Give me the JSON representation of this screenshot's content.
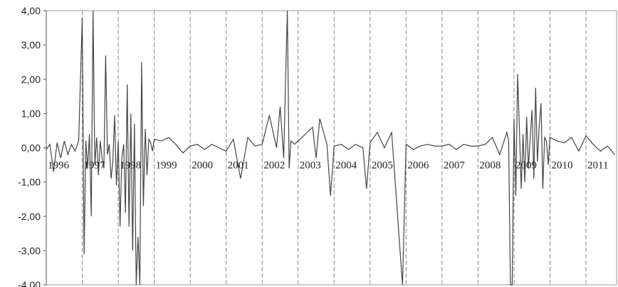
{
  "chart_data": {
    "type": "line",
    "title": "",
    "xlabel": "",
    "ylabel": "",
    "ylim": [
      -4,
      4
    ],
    "xlim": [
      1996,
      2011.85
    ],
    "y_ticks": [
      {
        "value": 4,
        "label": "4,00"
      },
      {
        "value": 3,
        "label": "3,00"
      },
      {
        "value": 2,
        "label": "2,00"
      },
      {
        "value": 1,
        "label": "1,00"
      },
      {
        "value": 0,
        "label": "0,00"
      },
      {
        "value": -1,
        "label": "-1,00"
      },
      {
        "value": -2,
        "label": "-2,00"
      },
      {
        "value": -3,
        "label": "-3,00"
      },
      {
        "value": -4,
        "label": "-4,00"
      }
    ],
    "year_labels": [
      "1996",
      "1997",
      "1998",
      "1999",
      "2000",
      "2001",
      "2002",
      "2003",
      "2004",
      "2005",
      "2006",
      "2007",
      "2008",
      "2009",
      "2010",
      "2011"
    ],
    "grid": {
      "vertical_dashed_year_lines": true,
      "horizontal": false
    },
    "legend": "none",
    "line_color": "#444444",
    "series": [
      {
        "x": [
          1996.0,
          1996.1,
          1996.2,
          1996.3,
          1996.4,
          1996.5,
          1996.6,
          1996.7,
          1996.8,
          1996.9,
          1997.0,
          1997.05,
          1997.1,
          1997.15,
          1997.2,
          1997.25,
          1997.3,
          1997.35,
          1997.4,
          1997.45,
          1997.5,
          1997.55,
          1997.6,
          1997.65,
          1997.7,
          1997.75,
          1997.8,
          1997.85,
          1997.9,
          1997.95,
          1998.0,
          1998.05,
          1998.1,
          1998.15,
          1998.2,
          1998.25,
          1998.3,
          1998.35,
          1998.4,
          1998.45,
          1998.5,
          1998.55,
          1998.6,
          1998.65,
          1998.7,
          1998.75,
          1998.8,
          1998.85,
          1998.9,
          1998.95,
          1999.0,
          1999.2,
          1999.4,
          1999.6,
          1999.8,
          2000.0,
          2000.2,
          2000.4,
          2000.6,
          2000.8,
          2001.0,
          2001.2,
          2001.4,
          2001.6,
          2001.8,
          2002.0,
          2002.2,
          2002.4,
          2002.5,
          2002.6,
          2002.65,
          2002.7,
          2002.75,
          2002.8,
          2002.9,
          2003.0,
          2003.2,
          2003.4,
          2003.5,
          2003.6,
          2003.8,
          2003.9,
          2004.0,
          2004.2,
          2004.4,
          2004.6,
          2004.8,
          2004.9,
          2005.0,
          2005.2,
          2005.4,
          2005.6,
          2005.9,
          2006.0,
          2006.2,
          2006.4,
          2006.6,
          2006.8,
          2007.0,
          2007.2,
          2007.4,
          2007.6,
          2007.8,
          2008.0,
          2008.2,
          2008.4,
          2008.6,
          2008.8,
          2008.85,
          2008.9,
          2008.95,
          2009.0,
          2009.05,
          2009.1,
          2009.15,
          2009.2,
          2009.25,
          2009.3,
          2009.35,
          2009.4,
          2009.45,
          2009.5,
          2009.55,
          2009.6,
          2009.65,
          2009.7,
          2009.75,
          2009.8,
          2009.85,
          2009.9,
          2009.95,
          2010.0,
          2010.2,
          2010.4,
          2010.6,
          2010.8,
          2011.0,
          2011.2,
          2011.4,
          2011.6,
          2011.8
        ],
        "y": [
          -0.05,
          0.1,
          -0.7,
          0.15,
          -0.3,
          0.2,
          -0.2,
          0.1,
          -0.1,
          0.2,
          3.8,
          -3.1,
          0.2,
          -0.6,
          0.4,
          -2.0,
          4.0,
          -0.5,
          0.3,
          -0.8,
          0.2,
          -0.3,
          -0.6,
          2.7,
          -0.2,
          0.1,
          -0.9,
          -0.4,
          0.95,
          -1.1,
          0.2,
          -2.3,
          -0.3,
          0.1,
          -1.9,
          1.85,
          -2.3,
          1.0,
          -3.0,
          0.7,
          -4.0,
          -2.6,
          -4.0,
          2.5,
          -1.7,
          0.55,
          -0.8,
          0.25,
          0.15,
          -0.1,
          0.25,
          0.2,
          0.3,
          0.1,
          -0.15,
          0.05,
          0.1,
          -0.05,
          0.1,
          0.0,
          -0.1,
          0.25,
          -0.9,
          0.3,
          0.05,
          0.1,
          0.95,
          0.0,
          1.2,
          -0.3,
          2.0,
          4.0,
          -0.6,
          0.2,
          0.1,
          0.2,
          0.4,
          0.6,
          -0.3,
          0.85,
          0.1,
          -1.4,
          0.05,
          0.1,
          -0.05,
          0.1,
          0.0,
          -1.2,
          0.15,
          0.45,
          0.0,
          0.45,
          -4.0,
          0.1,
          -0.05,
          0.05,
          0.1,
          0.05,
          0.05,
          0.1,
          -0.05,
          0.1,
          0.05,
          0.05,
          0.1,
          0.3,
          -0.2,
          0.45,
          0.2,
          -4.0,
          -4.0,
          0.85,
          -1.4,
          2.15,
          0.5,
          -1.2,
          0.4,
          -1.0,
          0.9,
          -0.6,
          0.3,
          1.1,
          -0.9,
          1.75,
          -0.4,
          0.6,
          1.3,
          -1.2,
          0.3,
          0.2,
          -0.5,
          0.3,
          0.2,
          0.15,
          0.3,
          -0.1,
          0.35,
          0.1,
          -0.1,
          0.05,
          -0.2
        ]
      }
    ]
  }
}
